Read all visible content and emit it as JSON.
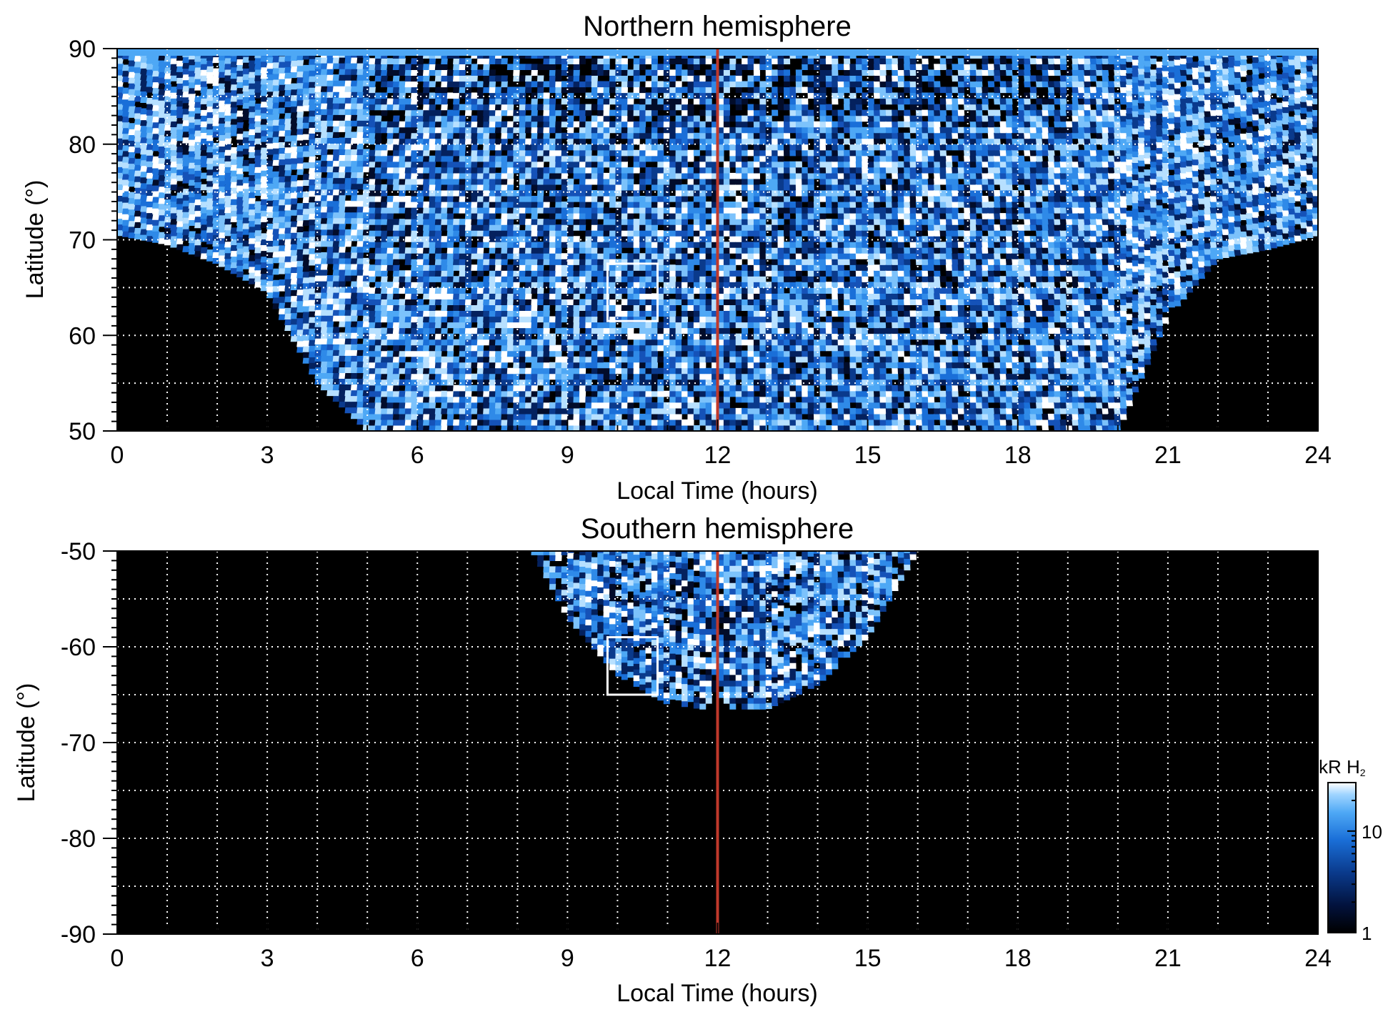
{
  "chart_data": [
    {
      "type": "heatmap",
      "title": "Northern hemisphere",
      "xlabel": "Local Time (hours)",
      "ylabel": "Latitude (°)",
      "xlim": [
        0,
        24
      ],
      "ylim": [
        50,
        90
      ],
      "x_ticks": [
        "0",
        "3",
        "6",
        "9",
        "12",
        "15",
        "18",
        "21",
        "24"
      ],
      "y_ticks": [
        "90",
        "80",
        "70",
        "60",
        "50"
      ],
      "x_tick_values": [
        0,
        3,
        6,
        9,
        12,
        15,
        18,
        21,
        24
      ],
      "y_tick_values": [
        90,
        80,
        70,
        60,
        50
      ],
      "grid": true,
      "grid_x_step": 1,
      "grid_y_step": 5,
      "noon_line_x": 12,
      "noon_line_color": "#c0392b",
      "box": {
        "x": [
          9.8,
          10.8
        ],
        "y": [
          61.5,
          67.5
        ]
      },
      "coverage": {
        "description_points_lt": [
          0,
          1,
          2,
          3,
          4,
          5,
          6,
          18,
          19,
          20,
          21,
          22,
          23,
          24
        ],
        "min_latitude": [
          70.5,
          69.5,
          67.5,
          64.5,
          55,
          50,
          50,
          50,
          50,
          50,
          62,
          68,
          69,
          70.5
        ]
      }
    },
    {
      "type": "heatmap",
      "title": "Southern hemisphere",
      "xlabel": "Local Time (hours)",
      "ylabel": "Latitude (°)",
      "xlim": [
        0,
        24
      ],
      "ylim": [
        -90,
        -50
      ],
      "x_ticks": [
        "0",
        "3",
        "6",
        "9",
        "12",
        "15",
        "18",
        "21",
        "24"
      ],
      "y_ticks": [
        "-50",
        "-60",
        "-70",
        "-80",
        "-90"
      ],
      "x_tick_values": [
        0,
        3,
        6,
        9,
        12,
        15,
        18,
        21,
        24
      ],
      "y_tick_values": [
        -50,
        -60,
        -70,
        -80,
        -90
      ],
      "grid": true,
      "grid_x_step": 1,
      "grid_y_step": 5,
      "noon_line_x": 12,
      "noon_line_color": "#c0392b",
      "box": {
        "x": [
          9.8,
          10.8
        ],
        "y": [
          -65,
          -59
        ]
      },
      "coverage": {
        "lt_points": [
          8.3,
          9.0,
          10.0,
          11.0,
          11.7,
          12.0,
          12.3,
          13.0,
          14.0,
          15.0,
          16.0
        ],
        "max_negative_latitude": [
          -50,
          -57,
          -63,
          -66,
          -66.5,
          -65,
          -66.5,
          -66.5,
          -64,
          -59,
          -50
        ]
      },
      "colorbar": {
        "label": "kR H₂",
        "label_main": "kR H",
        "label_sub": "2",
        "scale": "log",
        "range": [
          1,
          30
        ],
        "ticks": [
          "1",
          "10"
        ],
        "tick_values": [
          1,
          10
        ],
        "colors": [
          "#000000",
          "#02123c",
          "#0a3a8c",
          "#1a6fd8",
          "#4ea8f5",
          "#9fd4ff",
          "#ffffff"
        ]
      }
    }
  ]
}
